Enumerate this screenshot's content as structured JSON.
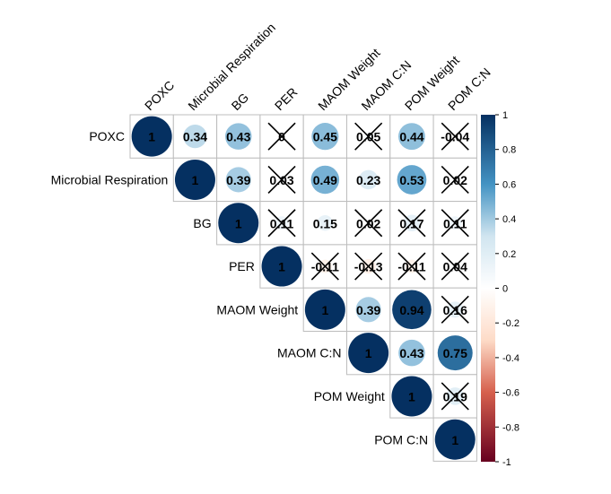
{
  "chart_data": {
    "type": "heatmap",
    "variables": [
      "POXC",
      "Microbial Respiration",
      "BG",
      "PER",
      "MAOM Weight",
      "MAOM C:N",
      "POM Weight",
      "POM C:N"
    ],
    "matrix": [
      [
        1,
        0.34,
        0.43,
        0,
        0.45,
        0.05,
        0.44,
        -0.04
      ],
      [
        null,
        1,
        0.39,
        0.03,
        0.49,
        0.23,
        0.53,
        0.02
      ],
      [
        null,
        null,
        1,
        0.11,
        0.15,
        0.02,
        0.17,
        0.11
      ],
      [
        null,
        null,
        null,
        1,
        -0.11,
        -0.13,
        -0.11,
        0.04
      ],
      [
        null,
        null,
        null,
        null,
        1,
        0.39,
        0.94,
        0.16
      ],
      [
        null,
        null,
        null,
        null,
        null,
        1,
        0.43,
        0.75
      ],
      [
        null,
        null,
        null,
        null,
        null,
        null,
        1,
        0.19
      ],
      [
        null,
        null,
        null,
        null,
        null,
        null,
        null,
        1
      ]
    ],
    "labels": [
      [
        "1",
        "0.34",
        "0.43",
        "0",
        "0.45",
        "0.05",
        "0.44",
        "-0.04"
      ],
      [
        null,
        "1",
        "0.39",
        "0.03",
        "0.49",
        "0.23",
        "0.53",
        "0.02"
      ],
      [
        null,
        null,
        "1",
        "0.11",
        "0.15",
        "0.02",
        "0.17",
        "0.11"
      ],
      [
        null,
        null,
        null,
        "1",
        "-0.11",
        "-0.13",
        "-0.11",
        "0.04"
      ],
      [
        null,
        null,
        null,
        null,
        "1",
        "0.39",
        "0.94",
        "0.16"
      ],
      [
        null,
        null,
        null,
        null,
        null,
        "1",
        "0.43",
        "0.75"
      ],
      [
        null,
        null,
        null,
        null,
        null,
        null,
        "1",
        "0.19"
      ],
      [
        null,
        null,
        null,
        null,
        null,
        null,
        null,
        "1"
      ]
    ],
    "not_significant": [
      [
        false,
        false,
        false,
        true,
        false,
        true,
        false,
        true
      ],
      [
        null,
        false,
        false,
        true,
        false,
        false,
        false,
        true
      ],
      [
        null,
        null,
        false,
        true,
        false,
        true,
        true,
        true
      ],
      [
        null,
        null,
        null,
        false,
        true,
        true,
        true,
        true
      ],
      [
        null,
        null,
        null,
        null,
        false,
        false,
        false,
        true
      ],
      [
        null,
        null,
        null,
        null,
        null,
        false,
        false,
        false
      ],
      [
        null,
        null,
        null,
        null,
        null,
        null,
        false,
        true
      ],
      [
        null,
        null,
        null,
        null,
        null,
        null,
        null,
        false
      ]
    ],
    "colorbar": {
      "ticks": [
        "1",
        "0.8",
        "0.6",
        "0.4",
        "0.2",
        "0",
        "-0.2",
        "-0.4",
        "-0.6",
        "-0.8",
        "-1"
      ],
      "range": [
        -1,
        1
      ],
      "colors": {
        "neg_strong": "#67001F",
        "neg_mid": "#D6604D",
        "neg_light": "#FDDBC7",
        "zero": "#FFFFFF",
        "pos_light": "#D1E5F0",
        "pos_mid": "#4393C3",
        "pos_strong": "#053061"
      }
    }
  }
}
